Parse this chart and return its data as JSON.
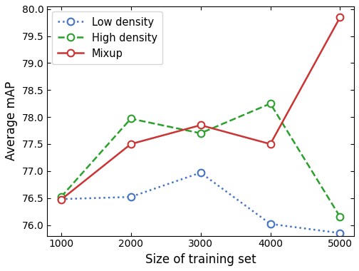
{
  "x": [
    1000,
    2000,
    3000,
    4000,
    5000
  ],
  "low_density": [
    76.48,
    76.52,
    76.97,
    76.02,
    75.85
  ],
  "high_density": [
    76.52,
    77.97,
    77.7,
    78.25,
    76.15
  ],
  "mixup": [
    76.47,
    77.5,
    77.85,
    77.5,
    79.85
  ],
  "low_color": "#4472C4",
  "high_color": "#2CA02C",
  "mixup_color": "#CC3333",
  "xlabel": "Size of training set",
  "ylabel": "Average mAP",
  "ylim": [
    75.8,
    80.05
  ],
  "xlim": [
    800,
    5200
  ],
  "xticks": [
    1000,
    2000,
    3000,
    4000,
    5000
  ],
  "yticks": [
    76.0,
    76.5,
    77.0,
    77.5,
    78.0,
    78.5,
    79.0,
    79.5,
    80.0
  ],
  "legend_labels": [
    "Low density",
    "High density",
    "Mixup"
  ],
  "marker": "o",
  "markersize": 7,
  "linewidth": 1.8,
  "fig_width": 5.04,
  "fig_height": 3.8,
  "dpi": 100
}
